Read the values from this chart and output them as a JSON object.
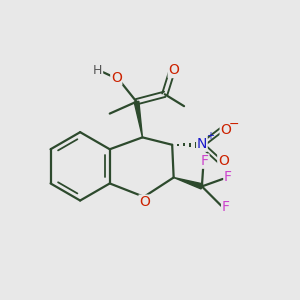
{
  "bg_color": "#e8e8e8",
  "fig_size": [
    3.0,
    3.0
  ],
  "dpi": 100,
  "colors": {
    "bond": "#2d4a2d",
    "O": "#cc2200",
    "N": "#1a1acc",
    "F": "#cc44cc",
    "H": "#555555"
  },
  "bond_width": 1.6
}
